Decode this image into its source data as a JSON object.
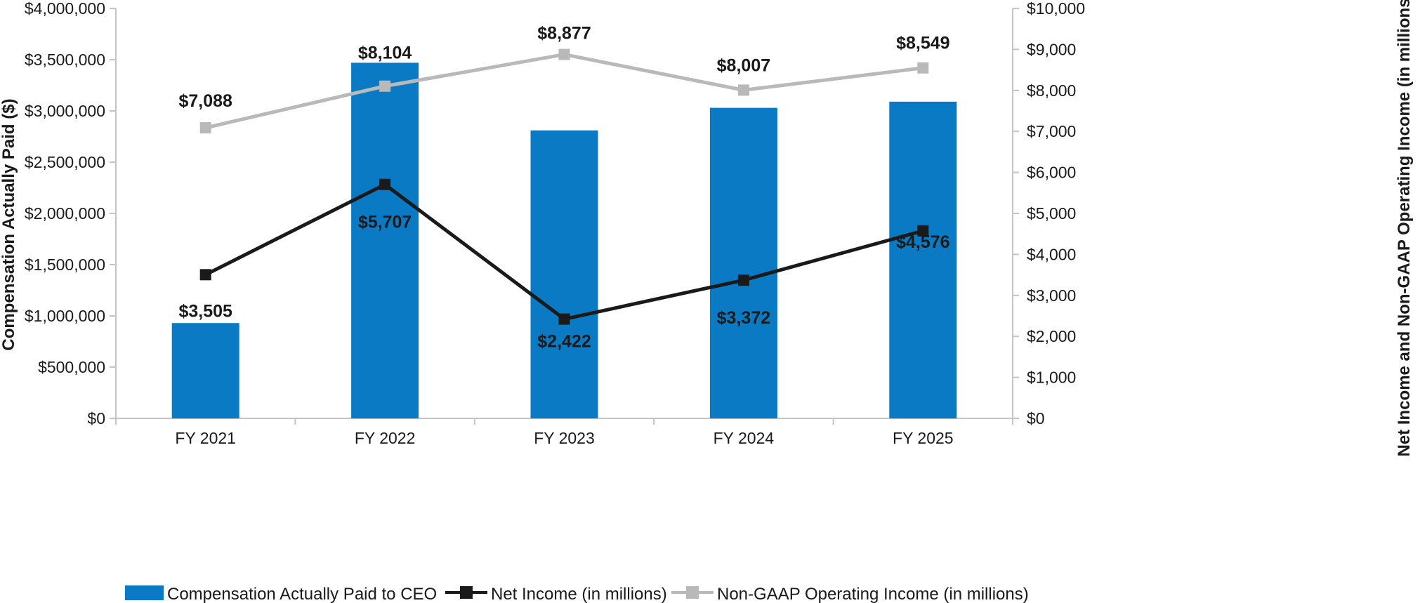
{
  "chart_data": {
    "type": "bar",
    "categories": [
      "FY 2021",
      "FY 2022",
      "FY 2023",
      "FY 2024",
      "FY 2025"
    ],
    "series": [
      {
        "name": "Compensation Actually Paid to CEO",
        "type": "bar",
        "axis": "left",
        "color": "#0a7ac4",
        "values": [
          930000,
          3470000,
          2810000,
          3030000,
          3090000
        ]
      },
      {
        "name": "Net Income (in millions)",
        "type": "line",
        "axis": "right",
        "color": "#1a1a1a",
        "marker": "square",
        "values": [
          3505,
          5707,
          2422,
          3372,
          4576
        ],
        "labels": [
          "$3,505",
          "$5,707",
          "$2,422",
          "$3,372",
          "$4,576"
        ]
      },
      {
        "name": "Non-GAAP Operating Income (in millions)",
        "type": "line",
        "axis": "right",
        "color": "#b9b9b9",
        "marker": "square",
        "values": [
          7088,
          8104,
          8877,
          8007,
          8549
        ],
        "labels": [
          "$7,088",
          "$8,104",
          "$8,877",
          "$8,007",
          "$8,549"
        ]
      }
    ],
    "left_axis": {
      "label": "Compensation Actually Paid ($)",
      "ylim": [
        0,
        4000000
      ],
      "ticks": [
        "$0",
        "$500,000",
        "$1,000,000",
        "$1,500,000",
        "$2,000,000",
        "$2,500,000",
        "$3,000,000",
        "$3,500,000",
        "$4,000,000"
      ]
    },
    "right_axis": {
      "label": "Net Income and Non-GAAP Operating Income (in millions)",
      "ylim": [
        0,
        10000
      ],
      "ticks": [
        "$0",
        "$1,000",
        "$2,000",
        "$3,000",
        "$4,000",
        "$5,000",
        "$6,000",
        "$7,000",
        "$8,000",
        "$9,000",
        "$10,000"
      ]
    },
    "grid": false,
    "legend_position": "bottom"
  }
}
